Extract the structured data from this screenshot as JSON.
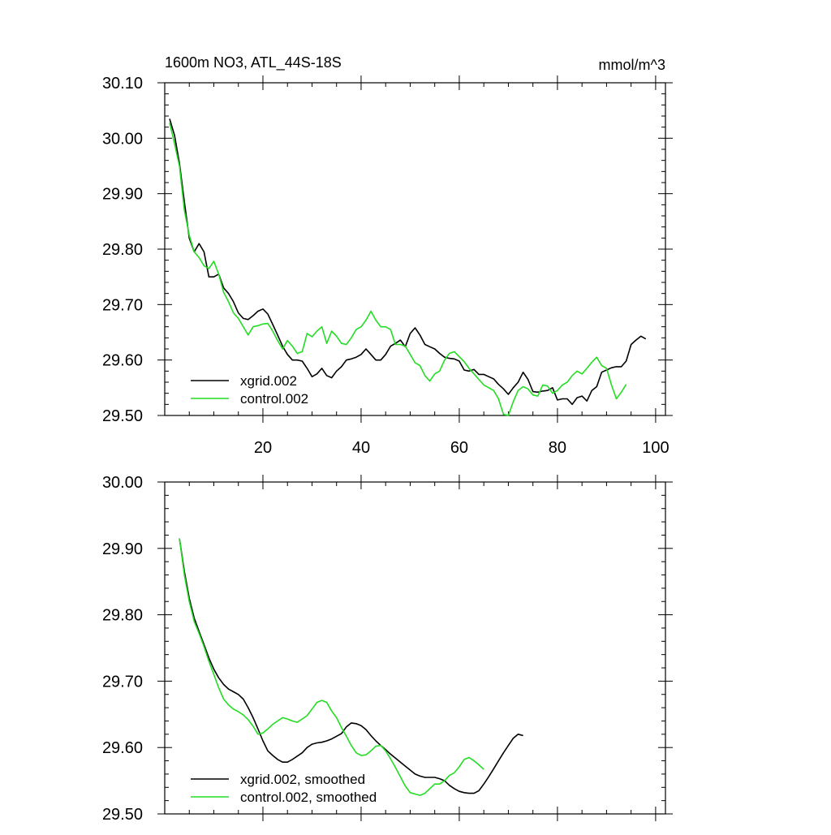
{
  "page": {
    "title": "1600m NO3, ATL_44S-18S",
    "units": "mmol/m^3"
  },
  "colors": {
    "xgrid": "#000000",
    "control": "#22dd22",
    "axis": "#000000",
    "background": "#ffffff"
  },
  "chart_data": [
    {
      "type": "line",
      "title": "1600m NO3, ATL_44S-18S",
      "units": "mmol/m^3",
      "xlabel": "",
      "ylabel": "",
      "xlim": [
        0,
        102
      ],
      "ylim": [
        29.5,
        30.1
      ],
      "xticks": [
        20,
        40,
        60,
        80,
        100
      ],
      "xtick_labels": [
        "20",
        "40",
        "60",
        "80",
        "100"
      ],
      "yticks": [
        29.5,
        29.6,
        29.7,
        29.8,
        29.9,
        30.0,
        30.1
      ],
      "ytick_labels": [
        "29.50",
        "29.60",
        "29.70",
        "29.80",
        "29.90",
        "30.00",
        "30.10"
      ],
      "grid": false,
      "legend_position": "bottom-left",
      "x_start": 1,
      "series": [
        {
          "name": "xgrid.002",
          "color": "#000000",
          "values": [
            30.035,
            30.005,
            29.955,
            29.885,
            29.82,
            29.795,
            29.81,
            29.795,
            29.75,
            29.75,
            29.755,
            29.73,
            29.72,
            29.705,
            29.685,
            29.675,
            29.673,
            29.68,
            29.688,
            29.692,
            29.683,
            29.664,
            29.645,
            29.625,
            29.61,
            29.6,
            29.6,
            29.598,
            29.585,
            29.57,
            29.575,
            29.585,
            29.572,
            29.568,
            29.58,
            29.588,
            29.6,
            29.602,
            29.605,
            29.61,
            29.62,
            29.61,
            29.6,
            29.6,
            29.61,
            29.625,
            29.63,
            29.636,
            29.624,
            29.648,
            29.658,
            29.645,
            29.628,
            29.624,
            29.62,
            29.612,
            29.605,
            29.603,
            29.602,
            29.598,
            29.582,
            29.58,
            29.583,
            29.574,
            29.574,
            29.57,
            29.566,
            29.556,
            29.548,
            29.538,
            29.55,
            29.56,
            29.578,
            29.565,
            29.543,
            29.542,
            29.544,
            29.545,
            29.55,
            29.528,
            29.53,
            29.53,
            29.52,
            29.532,
            29.535,
            29.526,
            29.545,
            29.552,
            29.578,
            29.582,
            29.586,
            29.588,
            29.588,
            29.598,
            29.628,
            29.636,
            29.643,
            29.638
          ]
        },
        {
          "name": "control.002",
          "color": "#22dd22",
          "values": [
            30.028,
            29.99,
            29.95,
            29.87,
            29.825,
            29.795,
            29.785,
            29.77,
            29.765,
            29.778,
            29.755,
            29.722,
            29.705,
            29.685,
            29.675,
            29.66,
            29.645,
            29.66,
            29.662,
            29.665,
            29.666,
            29.652,
            29.635,
            29.62,
            29.635,
            29.625,
            29.612,
            29.615,
            29.648,
            29.642,
            29.652,
            29.66,
            29.63,
            29.652,
            29.643,
            29.63,
            29.628,
            29.64,
            29.655,
            29.66,
            29.672,
            29.688,
            29.672,
            29.66,
            29.66,
            29.655,
            29.628,
            29.628,
            29.625,
            29.61,
            29.595,
            29.59,
            29.572,
            29.562,
            29.575,
            29.58,
            29.6,
            29.612,
            29.615,
            29.606,
            29.597,
            29.585,
            29.575,
            29.565,
            29.555,
            29.55,
            29.545,
            29.53,
            29.502,
            29.5,
            29.525,
            29.545,
            29.552,
            29.548,
            29.537,
            29.535,
            29.555,
            29.553,
            29.54,
            29.545,
            29.555,
            29.56,
            29.572,
            29.58,
            29.575,
            29.585,
            29.596,
            29.605,
            29.59,
            29.585,
            29.555,
            29.53,
            29.542,
            29.556
          ]
        }
      ]
    },
    {
      "type": "line",
      "title": "",
      "xlabel": "",
      "ylabel": "",
      "xlim": [
        0,
        102
      ],
      "ylim": [
        29.5,
        30.0
      ],
      "xticks": [
        20,
        40,
        60,
        80,
        100
      ],
      "yticks": [
        29.5,
        29.6,
        29.7,
        29.8,
        29.9,
        30.0
      ],
      "ytick_labels": [
        "29.50",
        "29.60",
        "29.70",
        "29.80",
        "29.90",
        "30.00"
      ],
      "grid": false,
      "legend_position": "bottom-left",
      "x_start": 3,
      "series": [
        {
          "name": "xgrid.002, smoothed",
          "color": "#000000",
          "values": [
            29.915,
            29.865,
            29.825,
            29.795,
            29.775,
            29.755,
            29.735,
            29.718,
            29.705,
            29.695,
            29.688,
            29.684,
            29.68,
            29.673,
            29.66,
            29.645,
            29.628,
            29.61,
            29.595,
            29.588,
            29.582,
            29.578,
            29.578,
            29.582,
            29.587,
            29.592,
            29.6,
            29.605,
            29.607,
            29.608,
            29.61,
            29.613,
            29.617,
            29.621,
            29.631,
            29.637,
            29.636,
            29.633,
            29.627,
            29.618,
            29.61,
            29.603,
            29.597,
            29.59,
            29.584,
            29.578,
            29.572,
            29.566,
            29.56,
            29.557,
            29.555,
            29.555,
            29.555,
            29.553,
            29.55,
            29.543,
            29.538,
            29.534,
            29.532,
            29.531,
            29.531,
            29.535,
            29.545,
            29.556,
            29.568,
            29.58,
            29.592,
            29.603,
            29.614,
            29.62,
            29.618
          ]
        },
        {
          "name": "control.002, smoothed",
          "color": "#22dd22",
          "values": [
            29.915,
            29.86,
            29.82,
            29.79,
            29.772,
            29.752,
            29.73,
            29.71,
            29.69,
            29.673,
            29.664,
            29.658,
            29.654,
            29.649,
            29.642,
            29.632,
            29.62,
            29.622,
            29.628,
            29.635,
            29.64,
            29.645,
            29.643,
            29.64,
            29.638,
            29.643,
            29.648,
            29.658,
            29.668,
            29.671,
            29.668,
            29.655,
            29.645,
            29.63,
            29.617,
            29.603,
            29.592,
            29.588,
            29.589,
            29.595,
            29.602,
            29.603,
            29.595,
            29.583,
            29.57,
            29.556,
            29.542,
            29.532,
            29.53,
            29.528,
            29.531,
            29.538,
            29.545,
            29.545,
            29.55,
            29.558,
            29.562,
            29.571,
            29.582,
            29.585,
            29.58,
            29.574,
            29.567
          ]
        }
      ]
    }
  ]
}
